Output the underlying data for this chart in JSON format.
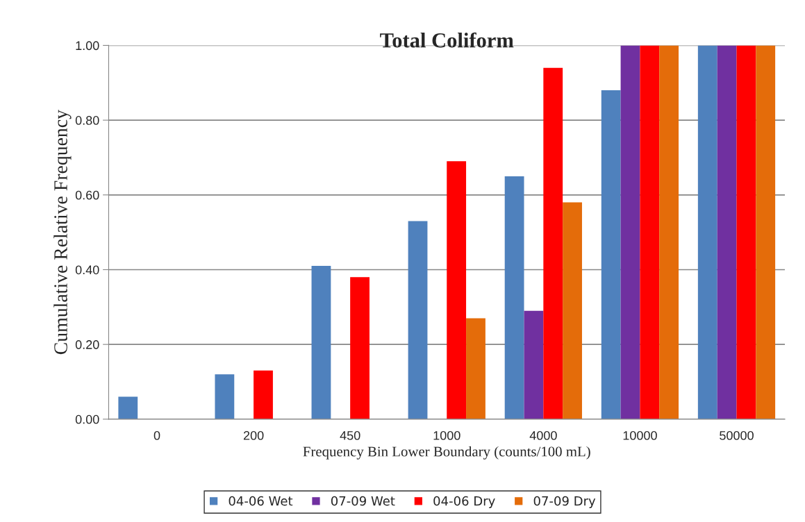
{
  "chart_data": {
    "type": "bar",
    "title": "Total Coliform",
    "xlabel": "Frequency Bin Lower Boundary (counts/100 mL)",
    "ylabel": "Cumulative Relative Frequency",
    "categories": [
      "0",
      "200",
      "450",
      "1000",
      "4000",
      "10000",
      "50000"
    ],
    "series": [
      {
        "name": "04-06 Wet",
        "color": "#4f81bd",
        "values": [
          0.06,
          0.12,
          0.41,
          0.53,
          0.65,
          0.88,
          1.0
        ]
      },
      {
        "name": "07-09 Wet",
        "color": "#7030a0",
        "values": [
          null,
          null,
          null,
          null,
          0.29,
          1.0,
          1.0
        ]
      },
      {
        "name": "04-06 Dry",
        "color": "#ff0000",
        "values": [
          null,
          0.13,
          0.38,
          0.69,
          0.94,
          1.0,
          1.0
        ]
      },
      {
        "name": "07-09 Dry",
        "color": "#e46c0a",
        "values": [
          null,
          null,
          null,
          0.27,
          0.58,
          1.0,
          1.0
        ]
      }
    ],
    "ylim": [
      0,
      1.0
    ],
    "yticks": [
      {
        "value": 0,
        "label": "0.00"
      },
      {
        "value": 0.2,
        "label": "0.20"
      },
      {
        "value": 0.4,
        "label": "0.40"
      },
      {
        "value": 0.6,
        "label": "0.60"
      },
      {
        "value": 0.8,
        "label": "0.80"
      },
      {
        "value": 1.0,
        "label": "1.00"
      }
    ],
    "grid": "y",
    "legend": "bottom"
  }
}
